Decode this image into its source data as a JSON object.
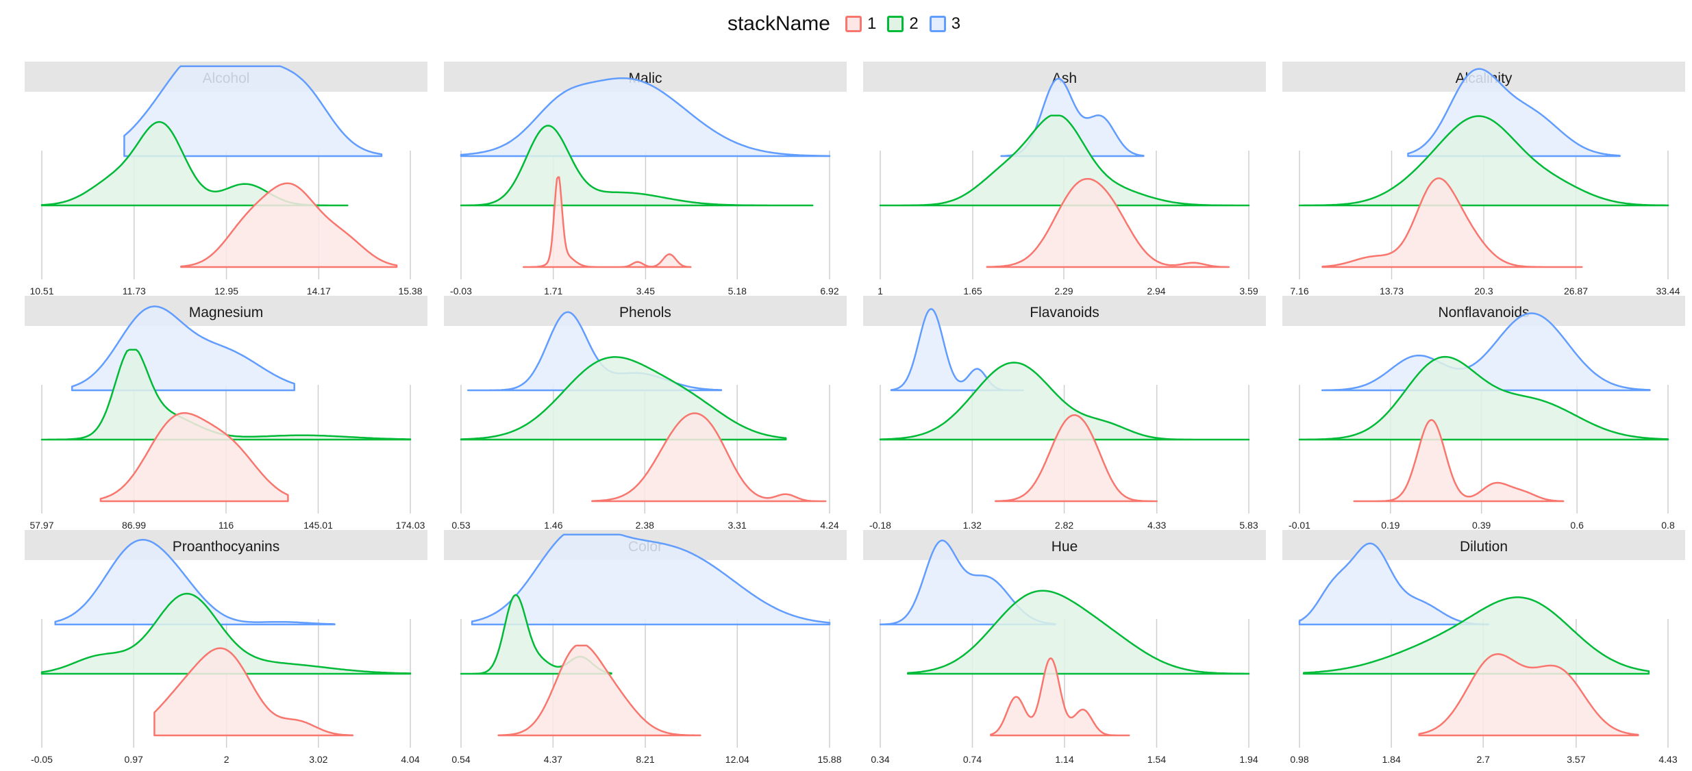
{
  "legend": {
    "title": "stackName",
    "items": [
      {
        "label": "1",
        "color": "#F8766D",
        "fill": "#FDE7E6"
      },
      {
        "label": "2",
        "color": "#00BA38",
        "fill": "#E1F3E5"
      },
      {
        "label": "3",
        "color": "#619CFF",
        "fill": "#E4EDFD"
      }
    ]
  },
  "chart_data": [
    {
      "type": "area",
      "title": "Alcohol",
      "ticks": [
        "10.51",
        "11.73",
        "12.95",
        "14.17",
        "15.38"
      ],
      "xlim": [
        10.51,
        15.38
      ],
      "series": [
        {
          "name": "3",
          "x": [
            11.6,
            15.0
          ],
          "peaks": [
            [
              12.5,
              0.55,
              0.85
            ],
            [
              13.3,
              0.6,
              0.85
            ],
            [
              14.0,
              0.35,
              0.4
            ]
          ]
        },
        {
          "name": "2",
          "x": [
            10.51,
            14.55
          ],
          "peaks": [
            [
              12.1,
              0.3,
              0.9
            ],
            [
              11.5,
              0.35,
              0.3
            ],
            [
              13.2,
              0.3,
              0.25
            ]
          ]
        },
        {
          "name": "1",
          "x": [
            12.35,
            15.2
          ],
          "peaks": [
            [
              13.8,
              0.35,
              0.9
            ],
            [
              13.2,
              0.3,
              0.4
            ],
            [
              14.5,
              0.3,
              0.3
            ]
          ]
        }
      ]
    },
    {
      "type": "area",
      "title": "Malic",
      "ticks": [
        "-0.03",
        "1.71",
        "3.45",
        "5.18",
        "6.92"
      ],
      "xlim": [
        -0.03,
        6.92
      ],
      "series": [
        {
          "name": "3",
          "x": [
            -0.03,
            6.92
          ],
          "peaks": [
            [
              3.1,
              1.1,
              0.9
            ],
            [
              1.8,
              0.5,
              0.25
            ]
          ]
        },
        {
          "name": "2",
          "x": [
            -0.03,
            6.6
          ],
          "peaks": [
            [
              1.6,
              0.4,
              0.9
            ],
            [
              3.0,
              0.8,
              0.15
            ]
          ]
        },
        {
          "name": "1",
          "x": [
            1.15,
            4.3
          ],
          "peaks": [
            [
              1.8,
              0.07,
              0.95
            ],
            [
              1.9,
              0.18,
              0.15
            ],
            [
              3.9,
              0.12,
              0.15
            ],
            [
              3.3,
              0.1,
              0.06
            ]
          ]
        }
      ]
    },
    {
      "type": "area",
      "title": "Ash",
      "ticks": [
        "1",
        "1.65",
        "2.29",
        "2.94",
        "3.59"
      ],
      "xlim": [
        1,
        3.59
      ],
      "series": [
        {
          "name": "3",
          "x": [
            1.85,
            2.85
          ],
          "peaks": [
            [
              2.25,
              0.11,
              0.9
            ],
            [
              2.55,
              0.1,
              0.45
            ]
          ]
        },
        {
          "name": "2",
          "x": [
            1,
            3.59
          ],
          "peaks": [
            [
              2.25,
              0.18,
              0.9
            ],
            [
              1.9,
              0.2,
              0.4
            ],
            [
              2.6,
              0.25,
              0.2
            ]
          ]
        },
        {
          "name": "1",
          "x": [
            1.75,
            3.45
          ],
          "peaks": [
            [
              2.4,
              0.18,
              0.9
            ],
            [
              2.65,
              0.15,
              0.4
            ],
            [
              3.2,
              0.08,
              0.05
            ]
          ]
        }
      ]
    },
    {
      "type": "area",
      "title": "Alcalinity",
      "ticks": [
        "7.16",
        "13.73",
        "20.3",
        "26.87",
        "33.44"
      ],
      "xlim": [
        7.16,
        33.44
      ],
      "series": [
        {
          "name": "3",
          "x": [
            14.9,
            30.0
          ],
          "peaks": [
            [
              19.6,
              1.8,
              0.9
            ],
            [
              23.5,
              2.2,
              0.5
            ]
          ]
        },
        {
          "name": "2",
          "x": [
            7.16,
            33.44
          ],
          "peaks": [
            [
              20.2,
              2.5,
              0.9
            ],
            [
              16.5,
              2.5,
              0.3
            ],
            [
              25.0,
              2.5,
              0.25
            ]
          ]
        },
        {
          "name": "1",
          "x": [
            8.8,
            27.3
          ],
          "peaks": [
            [
              16.8,
              1.4,
              0.9
            ],
            [
              19.0,
              1.5,
              0.35
            ],
            [
              12.5,
              1.5,
              0.12
            ]
          ]
        }
      ]
    },
    {
      "type": "area",
      "title": "Magnesium",
      "ticks": [
        "57.97",
        "86.99",
        "116",
        "145.01",
        "174.03"
      ],
      "xlim": [
        57.97,
        174.03
      ],
      "series": [
        {
          "name": "3",
          "x": [
            67.5,
            137.5
          ],
          "peaks": [
            [
              92,
              10,
              0.9
            ],
            [
              115,
              12,
              0.45
            ]
          ]
        },
        {
          "name": "2",
          "x": [
            57.97,
            174.03
          ],
          "peaks": [
            [
              86,
              5,
              0.9
            ],
            [
              96,
              10,
              0.3
            ],
            [
              140,
              15,
              0.05
            ]
          ]
        },
        {
          "name": "1",
          "x": [
            76.5,
            135.5
          ],
          "peaks": [
            [
              100,
              9,
              0.9
            ],
            [
              117,
              9,
              0.6
            ]
          ]
        }
      ]
    },
    {
      "type": "area",
      "title": "Phenols",
      "ticks": [
        "0.53",
        "1.46",
        "2.38",
        "3.31",
        "4.24"
      ],
      "xlim": [
        0.53,
        4.24
      ],
      "series": [
        {
          "name": "3",
          "x": [
            0.6,
            3.15
          ],
          "peaks": [
            [
              1.6,
              0.2,
              0.9
            ],
            [
              2.3,
              0.3,
              0.2
            ]
          ]
        },
        {
          "name": "2",
          "x": [
            0.53,
            3.8
          ],
          "peaks": [
            [
              2.0,
              0.45,
              0.9
            ],
            [
              2.8,
              0.4,
              0.4
            ]
          ]
        },
        {
          "name": "1",
          "x": [
            1.85,
            4.2
          ],
          "peaks": [
            [
              2.8,
              0.28,
              0.9
            ],
            [
              3.1,
              0.2,
              0.3
            ],
            [
              3.8,
              0.1,
              0.08
            ]
          ]
        }
      ]
    },
    {
      "type": "area",
      "title": "Flavanoids",
      "ticks": [
        "-0.18",
        "1.32",
        "2.82",
        "4.33",
        "5.83"
      ],
      "xlim": [
        -0.18,
        5.83
      ],
      "series": [
        {
          "name": "3",
          "x": [
            0.0,
            2.15
          ],
          "peaks": [
            [
              0.65,
              0.2,
              0.95
            ],
            [
              1.4,
              0.15,
              0.25
            ]
          ]
        },
        {
          "name": "2",
          "x": [
            -0.18,
            5.83
          ],
          "peaks": [
            [
              2.0,
              0.65,
              0.9
            ],
            [
              3.5,
              0.4,
              0.15
            ]
          ]
        },
        {
          "name": "1",
          "x": [
            1.7,
            4.33
          ],
          "peaks": [
            [
              2.9,
              0.33,
              0.9
            ],
            [
              3.3,
              0.25,
              0.3
            ]
          ]
        }
      ]
    },
    {
      "type": "area",
      "title": "Nonflavanoids",
      "ticks": [
        "-0.01",
        "0.19",
        "0.39",
        "0.6",
        "0.8"
      ],
      "xlim": [
        -0.01,
        0.8
      ],
      "series": [
        {
          "name": "3",
          "x": [
            0.04,
            0.76
          ],
          "peaks": [
            [
              0.5,
              0.08,
              0.9
            ],
            [
              0.25,
              0.06,
              0.4
            ]
          ]
        },
        {
          "name": "2",
          "x": [
            -0.01,
            0.8
          ],
          "peaks": [
            [
              0.3,
              0.08,
              0.9
            ],
            [
              0.5,
              0.1,
              0.45
            ]
          ]
        },
        {
          "name": "1",
          "x": [
            0.11,
            0.57
          ],
          "peaks": [
            [
              0.28,
              0.03,
              0.95
            ],
            [
              0.42,
              0.03,
              0.2
            ],
            [
              0.48,
              0.03,
              0.1
            ]
          ]
        }
      ]
    },
    {
      "type": "area",
      "title": "Proanthocyanins",
      "ticks": [
        "-0.05",
        "0.97",
        "2",
        "3.02",
        "4.04"
      ],
      "xlim": [
        -0.05,
        4.04
      ],
      "series": [
        {
          "name": "3",
          "x": [
            0.1,
            3.2
          ],
          "peaks": [
            [
              1.0,
              0.35,
              0.9
            ],
            [
              1.5,
              0.3,
              0.3
            ],
            [
              2.6,
              0.3,
              0.03
            ]
          ]
        },
        {
          "name": "2",
          "x": [
            -0.05,
            4.04
          ],
          "peaks": [
            [
              1.55,
              0.35,
              0.9
            ],
            [
              0.6,
              0.3,
              0.2
            ],
            [
              2.5,
              0.6,
              0.12
            ]
          ]
        },
        {
          "name": "1",
          "x": [
            1.2,
            3.4
          ],
          "peaks": [
            [
              2.0,
              0.3,
              0.9
            ],
            [
              1.5,
              0.3,
              0.4
            ],
            [
              2.8,
              0.2,
              0.15
            ]
          ]
        }
      ]
    },
    {
      "type": "area",
      "title": "Color",
      "ticks": [
        "0.54",
        "4.37",
        "8.21",
        "12.04",
        "15.88"
      ],
      "xlim": [
        0.54,
        15.88
      ],
      "series": [
        {
          "name": "3",
          "x": [
            1.0,
            15.88
          ],
          "peaks": [
            [
              5.0,
              1.5,
              0.7
            ],
            [
              8.0,
              2.5,
              0.8
            ],
            [
              11.0,
              2.0,
              0.3
            ]
          ]
        },
        {
          "name": "2",
          "x": [
            0.54,
            6.8
          ],
          "peaks": [
            [
              2.8,
              0.45,
              0.9
            ],
            [
              3.8,
              0.5,
              0.15
            ],
            [
              5.5,
              0.5,
              0.2
            ]
          ]
        },
        {
          "name": "1",
          "x": [
            2.1,
            10.5
          ],
          "peaks": [
            [
              5.3,
              0.9,
              0.9
            ],
            [
              6.8,
              1.0,
              0.45
            ]
          ]
        }
      ]
    },
    {
      "type": "area",
      "title": "Hue",
      "ticks": [
        "0.34",
        "0.74",
        "1.14",
        "1.54",
        "1.94"
      ],
      "xlim": [
        0.34,
        1.94
      ],
      "series": [
        {
          "name": "3",
          "x": [
            0.34,
            1.1
          ],
          "peaks": [
            [
              0.6,
              0.07,
              0.9
            ],
            [
              0.8,
              0.1,
              0.55
            ]
          ]
        },
        {
          "name": "2",
          "x": [
            0.46,
            1.94
          ],
          "peaks": [
            [
              1.0,
              0.18,
              0.85
            ],
            [
              1.3,
              0.18,
              0.4
            ]
          ]
        },
        {
          "name": "1",
          "x": [
            0.82,
            1.42
          ],
          "peaks": [
            [
              1.08,
              0.04,
              0.9
            ],
            [
              0.93,
              0.04,
              0.45
            ],
            [
              1.22,
              0.04,
              0.3
            ]
          ]
        }
      ]
    },
    {
      "type": "area",
      "title": "Dilution",
      "ticks": [
        "0.98",
        "1.84",
        "2.7",
        "3.57",
        "4.43"
      ],
      "xlim": [
        0.98,
        4.43
      ],
      "series": [
        {
          "name": "3",
          "x": [
            0.98,
            2.75
          ],
          "peaks": [
            [
              1.65,
              0.18,
              0.9
            ],
            [
              1.3,
              0.15,
              0.4
            ],
            [
              2.1,
              0.2,
              0.25
            ]
          ]
        },
        {
          "name": "2",
          "x": [
            1.02,
            4.25
          ],
          "peaks": [
            [
              3.1,
              0.45,
              0.8
            ],
            [
              2.3,
              0.5,
              0.3
            ]
          ]
        },
        {
          "name": "1",
          "x": [
            2.1,
            4.15
          ],
          "peaks": [
            [
              2.8,
              0.25,
              0.9
            ],
            [
              3.4,
              0.25,
              0.75
            ]
          ]
        }
      ]
    }
  ]
}
